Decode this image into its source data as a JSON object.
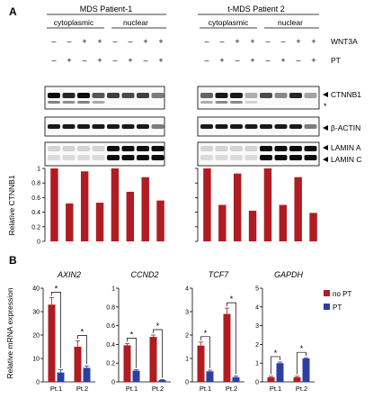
{
  "panel_a": {
    "label": "A",
    "patients": [
      {
        "title": "MDS Patient-1",
        "fractions": [
          "cytoplasmic",
          "nuclear"
        ],
        "wnt3a": [
          "–",
          "–",
          "+",
          "+",
          "–",
          "–",
          "+",
          "+"
        ],
        "pt": [
          "–",
          "+",
          "–",
          "+",
          "–",
          "+",
          "–",
          "+"
        ]
      },
      {
        "title": "t-MDS Patient 2",
        "fractions": [
          "cytoplasmic",
          "nuclear"
        ],
        "wnt3a": [
          "–",
          "–",
          "+",
          "+",
          "–",
          "–",
          "+",
          "+"
        ],
        "pt": [
          "–",
          "+",
          "–",
          "+",
          "–",
          "+",
          "–",
          "+"
        ]
      }
    ],
    "row_labels": {
      "wnt3a": "WNT3A",
      "pt": "PT"
    },
    "blot_labels": {
      "ctnnb1": "CTNNB1",
      "star": "*",
      "actin": "β-ACTIN",
      "lamin_a": "LAMIN A",
      "lamin_c": "LAMIN C"
    },
    "bar_color": "#b11b22"
  },
  "panel_b": {
    "label": "B",
    "ylabel": "Relative mRNA expression",
    "legend": [
      {
        "name": "no PT",
        "color": "#b11b22"
      },
      {
        "name": "PT",
        "color": "#2c3fa0"
      }
    ]
  },
  "chart_data": [
    {
      "type": "bar",
      "ylabel": "Relative CTNNB1",
      "ylim": [
        0,
        1
      ],
      "yticks": [
        "0",
        "0.2",
        "0.4",
        "0.6",
        "0.8",
        "1"
      ],
      "values": [
        1.0,
        0.52,
        0.96,
        0.53,
        1.0,
        0.68,
        0.88,
        0.56
      ]
    },
    {
      "type": "bar",
      "ylim": [
        0,
        1
      ],
      "values": [
        1.0,
        0.5,
        0.93,
        0.42,
        1.0,
        0.5,
        0.88,
        0.39
      ]
    },
    {
      "type": "bar",
      "title": "AXIN2",
      "categories": [
        "Pt.1",
        "Pt.2"
      ],
      "ylim": [
        0,
        40
      ],
      "yticks": [
        "0",
        "10",
        "20",
        "30",
        "40"
      ],
      "series": [
        {
          "name": "no PT",
          "values": [
            33,
            15
          ],
          "errors": [
            3,
            2.5
          ]
        },
        {
          "name": "PT",
          "values": [
            4,
            6
          ],
          "errors": [
            1.2,
            0.8
          ]
        }
      ],
      "significance": [
        "*",
        "*"
      ]
    },
    {
      "type": "bar",
      "title": "CCND2",
      "categories": [
        "Pt.1",
        "Pt.2"
      ],
      "ylim": [
        0,
        1
      ],
      "yticks": [
        "0",
        "0.2",
        "0.4",
        "0.6",
        "0.8",
        "1"
      ],
      "series": [
        {
          "name": "no PT",
          "values": [
            0.39,
            0.48
          ],
          "errors": [
            0.02,
            0.02
          ]
        },
        {
          "name": "PT",
          "values": [
            0.12,
            0.02
          ],
          "errors": [
            0.01,
            0.005
          ]
        }
      ],
      "significance": [
        "*",
        "*"
      ]
    },
    {
      "type": "bar",
      "title": "TCF7",
      "categories": [
        "Pt.1",
        "Pt.2"
      ],
      "ylim": [
        0,
        4
      ],
      "yticks": [
        "0",
        "1",
        "2",
        "3",
        "4"
      ],
      "series": [
        {
          "name": "no PT",
          "values": [
            1.55,
            2.9
          ],
          "errors": [
            0.15,
            0.25
          ]
        },
        {
          "name": "PT",
          "values": [
            0.45,
            0.2
          ],
          "errors": [
            0.05,
            0.05
          ]
        }
      ],
      "significance": [
        "*",
        "*"
      ]
    },
    {
      "type": "bar",
      "title": "GAPDH",
      "categories": [
        "Pt.1",
        "Pt.2"
      ],
      "ylim": [
        0,
        5
      ],
      "yticks": [
        "0",
        "1",
        "2",
        "3",
        "4",
        "5"
      ],
      "series": [
        {
          "name": "no PT",
          "values": [
            0.25,
            0.25
          ],
          "errors": [
            0.05,
            0.05
          ]
        },
        {
          "name": "PT",
          "values": [
            1.0,
            1.25
          ],
          "errors": [
            0.06,
            0.04
          ]
        }
      ],
      "significance": [
        "*",
        "*"
      ]
    }
  ]
}
